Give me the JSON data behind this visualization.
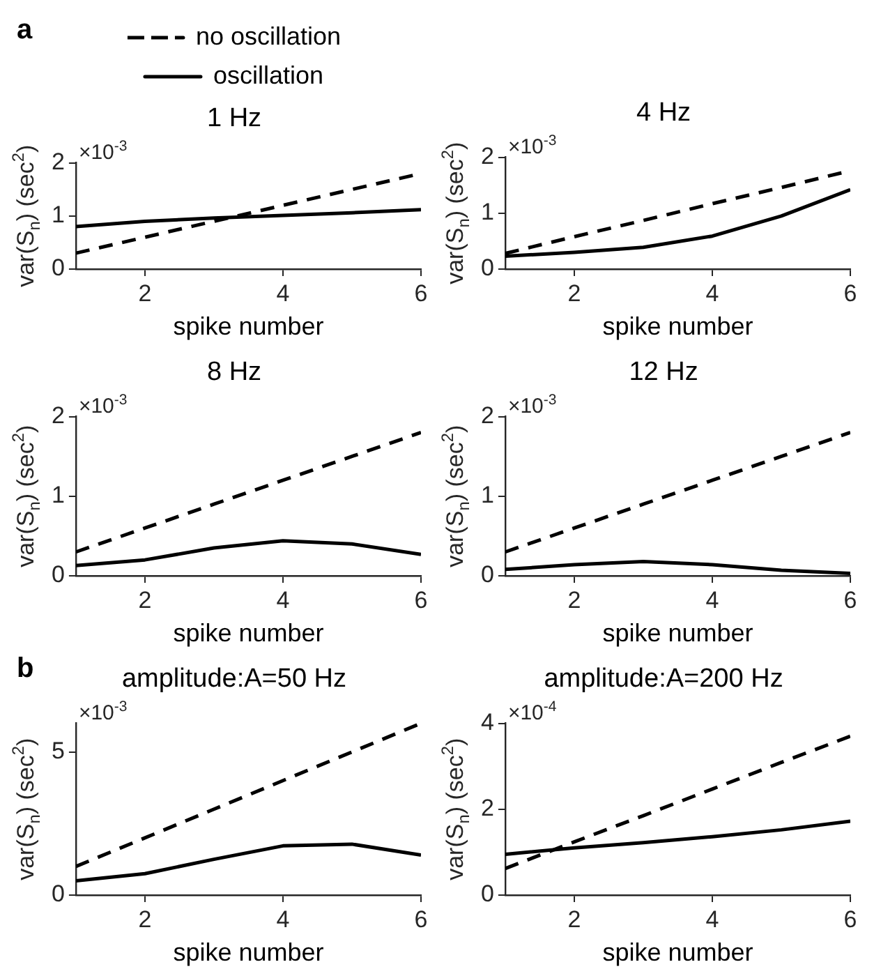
{
  "chart_data": [
    {
      "type": "line",
      "title": "1 Hz",
      "xlabel": "spike number",
      "ylabel": "var(S$_{n}$) (sec$^{2}$)",
      "x": [
        1,
        2,
        3,
        4,
        5,
        6
      ],
      "xlim": [
        1,
        6
      ],
      "xticks": [
        2,
        4,
        6
      ],
      "ylim": [
        0,
        2
      ],
      "yticks": [
        0,
        1,
        2
      ],
      "legend": "top",
      "marker": "none",
      "grid": false,
      "annotations": [
        "a",
        "×10$^{-3}$"
      ],
      "series": [
        {
          "name": "no oscillation",
          "color": "#000000",
          "line_style": "dashed",
          "values": [
            0.3,
            0.6,
            0.9,
            1.2,
            1.5,
            1.8
          ]
        },
        {
          "name": "oscillation",
          "color": "#000000",
          "line_style": "solid",
          "values": [
            0.8,
            0.9,
            0.96,
            1.01,
            1.06,
            1.12
          ]
        }
      ]
    },
    {
      "type": "line",
      "title": "4 Hz",
      "xlabel": "spike number",
      "ylabel": "var(S$_{n}$) (sec$^{2}$)",
      "x": [
        1,
        2,
        3,
        4,
        5,
        6
      ],
      "xlim": [
        1,
        6
      ],
      "xticks": [
        2,
        4,
        6
      ],
      "ylim": [
        0,
        2
      ],
      "yticks": [
        0,
        1,
        2
      ],
      "marker": "none",
      "grid": false,
      "annotations": [
        "×10$^{-3}$"
      ],
      "series": [
        {
          "color": "#000000",
          "line_style": "dashed",
          "values": [
            0.28,
            0.58,
            0.87,
            1.17,
            1.46,
            1.76
          ]
        },
        {
          "color": "#000000",
          "line_style": "solid",
          "values": [
            0.23,
            0.3,
            0.39,
            0.59,
            0.95,
            1.42
          ]
        }
      ]
    },
    {
      "type": "line",
      "title": "8 Hz",
      "xlabel": "spike number",
      "ylabel": "var(S$_{n}$) (sec$^{2}$)",
      "x": [
        1,
        2,
        3,
        4,
        5,
        6
      ],
      "xlim": [
        1,
        6
      ],
      "xticks": [
        2,
        4,
        6
      ],
      "ylim": [
        0,
        2
      ],
      "yticks": [
        0,
        1,
        2
      ],
      "marker": "none",
      "grid": false,
      "annotations": [
        "×10$^{-3}$"
      ],
      "series": [
        {
          "color": "#000000",
          "line_style": "dashed",
          "values": [
            0.3,
            0.6,
            0.9,
            1.2,
            1.5,
            1.8
          ]
        },
        {
          "color": "#000000",
          "line_style": "solid",
          "values": [
            0.13,
            0.2,
            0.35,
            0.44,
            0.4,
            0.27
          ]
        }
      ]
    },
    {
      "type": "line",
      "title": "12 Hz",
      "xlabel": "spike number",
      "ylabel": "var(S$_{n}$) (sec$^{2}$)",
      "x": [
        1,
        2,
        3,
        4,
        5,
        6
      ],
      "xlim": [
        1,
        6
      ],
      "xticks": [
        2,
        4,
        6
      ],
      "ylim": [
        0,
        2
      ],
      "yticks": [
        0,
        1,
        2
      ],
      "marker": "none",
      "grid": false,
      "annotations": [
        "×10$^{-3}$"
      ],
      "series": [
        {
          "color": "#000000",
          "line_style": "dashed",
          "values": [
            0.3,
            0.6,
            0.9,
            1.2,
            1.5,
            1.8
          ]
        },
        {
          "color": "#000000",
          "line_style": "solid",
          "values": [
            0.08,
            0.14,
            0.18,
            0.14,
            0.07,
            0.03
          ]
        }
      ]
    },
    {
      "type": "line",
      "title": "amplitude:A=50 Hz",
      "xlabel": "spike number",
      "ylabel": "var(S$_{n}$) (sec$^{2}$)",
      "x": [
        1,
        2,
        3,
        4,
        5,
        6
      ],
      "xlim": [
        1,
        6
      ],
      "xticks": [
        2,
        4,
        6
      ],
      "ylim": [
        0,
        6
      ],
      "yticks": [
        0,
        5
      ],
      "marker": "none",
      "grid": false,
      "annotations": [
        "b",
        "×10$^{-3}$"
      ],
      "series": [
        {
          "color": "#000000",
          "line_style": "dashed",
          "values": [
            1,
            2,
            3,
            4,
            5,
            6
          ]
        },
        {
          "color": "#000000",
          "line_style": "solid",
          "values": [
            0.5,
            0.75,
            1.25,
            1.72,
            1.78,
            1.4
          ]
        }
      ]
    },
    {
      "type": "line",
      "title": "amplitude:A=200 Hz",
      "xlabel": "spike number",
      "ylabel": "var(S$_{n}$) (sec$^{2}$)",
      "x": [
        1,
        2,
        3,
        4,
        5,
        6
      ],
      "xlim": [
        1,
        6
      ],
      "xticks": [
        2,
        4,
        6
      ],
      "ylim": [
        0,
        4
      ],
      "yticks": [
        0,
        2,
        4
      ],
      "marker": "none",
      "grid": false,
      "annotations": [
        "×10$^{-4}$"
      ],
      "series": [
        {
          "color": "#000000",
          "line_style": "dashed",
          "values": [
            0.62,
            1.24,
            1.85,
            2.47,
            3.09,
            3.7
          ]
        },
        {
          "color": "#000000",
          "line_style": "solid",
          "values": [
            0.95,
            1.1,
            1.22,
            1.36,
            1.52,
            1.72
          ]
        }
      ]
    }
  ]
}
